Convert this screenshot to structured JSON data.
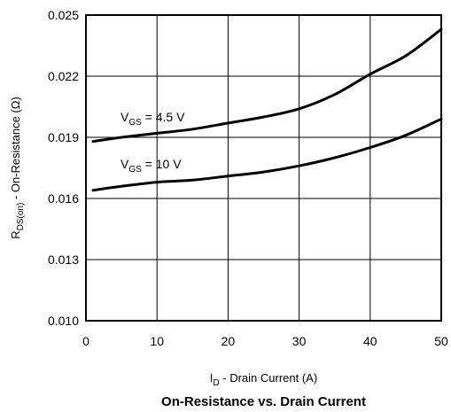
{
  "chart_data": {
    "type": "line",
    "title": "On-Resistance vs. Drain Current",
    "xlabel": {
      "symbol": "I",
      "subscript": "D",
      "text": " - Drain Current (A)"
    },
    "ylabel": {
      "symbol": "R",
      "subscript": "DS(on)",
      "text": " - On-Resistance (Ω)"
    },
    "xlim": [
      0,
      50
    ],
    "ylim": [
      0.01,
      0.025
    ],
    "x_ticks": [
      0,
      10,
      20,
      30,
      40,
      50
    ],
    "x_tick_labels": [
      "0",
      "10",
      "20",
      "30",
      "40",
      "50"
    ],
    "y_ticks": [
      0.01,
      0.013,
      0.016,
      0.019,
      0.022,
      0.025
    ],
    "y_tick_labels": [
      "0.010",
      "0.013",
      "0.016",
      "0.019",
      "0.022",
      "0.025"
    ],
    "grid": true,
    "series": [
      {
        "name": {
          "symbol": "V",
          "subscript": "GS",
          "text": " = 4.5 V"
        },
        "x": [
          1,
          5,
          10,
          15,
          20,
          25,
          30,
          35,
          40,
          45,
          50
        ],
        "y": [
          0.0188,
          0.019,
          0.0192,
          0.0194,
          0.0197,
          0.02,
          0.0204,
          0.0211,
          0.0221,
          0.023,
          0.0243
        ]
      },
      {
        "name": {
          "symbol": "V",
          "subscript": "GS",
          "text": " = 10 V"
        },
        "x": [
          1,
          5,
          10,
          15,
          20,
          25,
          30,
          35,
          40,
          45,
          50
        ],
        "y": [
          0.0164,
          0.0166,
          0.0168,
          0.0169,
          0.0171,
          0.0173,
          0.0176,
          0.018,
          0.0185,
          0.0191,
          0.0199
        ]
      }
    ]
  }
}
